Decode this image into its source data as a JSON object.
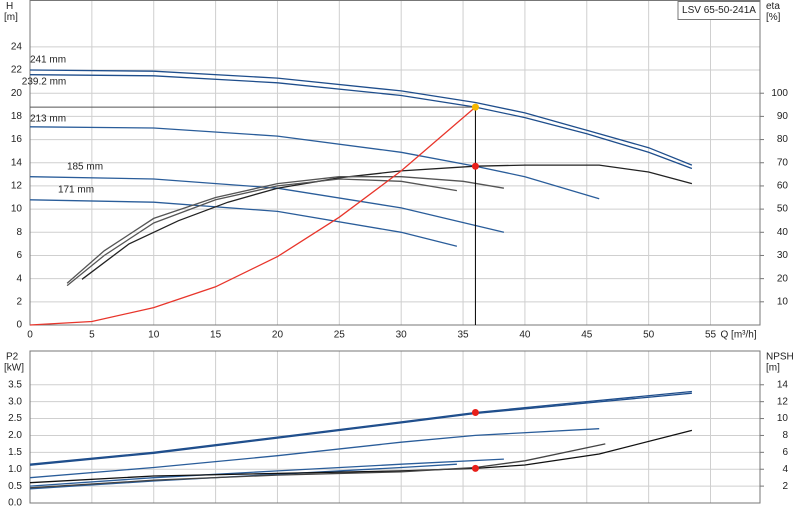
{
  "chart_data": [
    {
      "type": "line",
      "title": "LSV 65-50-241A",
      "x_label": "Q [m³/h]",
      "y_label": "H",
      "y_unit": "[m]",
      "y2_label": "eta",
      "y2_unit": "[%]",
      "xlim": [
        0,
        59
      ],
      "xticks": [
        0,
        5,
        10,
        15,
        20,
        25,
        30,
        35,
        40,
        45,
        50,
        55
      ],
      "ylim": [
        0,
        28
      ],
      "yticks": [
        0,
        2,
        4,
        6,
        8,
        10,
        12,
        14,
        16,
        18,
        20,
        22,
        24
      ],
      "y2lim": [
        0,
        140
      ],
      "y2ticks": [
        10,
        20,
        30,
        40,
        50,
        60,
        70,
        80,
        90,
        100
      ],
      "grid": true,
      "series": [
        {
          "name": "241 mm",
          "color": "#1f4e8c",
          "x": [
            0,
            10,
            20,
            30,
            36,
            40,
            45,
            50,
            53.5
          ],
          "values": [
            22.0,
            21.9,
            21.3,
            20.2,
            19.2,
            18.3,
            16.8,
            15.3,
            13.8
          ]
        },
        {
          "name": "239.2 mm",
          "color": "#1f4e8c",
          "x": [
            0,
            10,
            20,
            30,
            36,
            40,
            45,
            50,
            53.5
          ],
          "values": [
            21.6,
            21.5,
            20.9,
            19.8,
            18.8,
            17.9,
            16.5,
            14.9,
            13.5
          ]
        },
        {
          "name": "213 mm",
          "color": "#2a5d9a",
          "x": [
            0,
            10,
            20,
            30,
            36,
            40,
            46
          ],
          "values": [
            17.1,
            17.0,
            16.3,
            14.9,
            13.7,
            12.8,
            10.9
          ]
        },
        {
          "name": "185 mm",
          "color": "#2a5d9a",
          "x": [
            0,
            10,
            20,
            30,
            38.3
          ],
          "values": [
            12.8,
            12.6,
            11.8,
            10.1,
            8.0
          ]
        },
        {
          "name": "171 mm",
          "color": "#2a5d9a",
          "x": [
            0,
            10,
            20,
            30,
            34.5
          ],
          "values": [
            10.8,
            10.6,
            9.8,
            8.0,
            6.8
          ]
        },
        {
          "color": "#222222",
          "axis": "y2",
          "x": [
            4.2,
            8,
            12,
            16,
            20,
            25,
            30,
            36,
            40,
            46,
            50,
            53.5
          ],
          "values": [
            19.7,
            35,
            45,
            53,
            59,
            63.5,
            66.5,
            68.5,
            69,
            69,
            66,
            61
          ]
        },
        {
          "color": "#555555",
          "axis": "y2",
          "x": [
            3,
            6,
            10,
            15,
            20,
            25,
            30,
            35,
            38.3
          ],
          "values": [
            18,
            32,
            46,
            55,
            61,
            64,
            64,
            62,
            59
          ]
        },
        {
          "color": "#555555",
          "axis": "y2",
          "x": [
            3,
            6,
            10,
            15,
            20,
            25,
            30,
            34.5
          ],
          "values": [
            17,
            30,
            44,
            54,
            60,
            63,
            62,
            58
          ]
        },
        {
          "color": "#e8352b",
          "x": [
            0,
            5,
            10,
            15,
            20,
            25,
            30,
            36
          ],
          "values": [
            0,
            0.3,
            1.5,
            3.3,
            5.9,
            9.3,
            13.3,
            18.8
          ]
        }
      ],
      "markers": [
        {
          "color": "#f5b800",
          "x": 36,
          "value": 18.8
        },
        {
          "color": "#e8201b",
          "x": 36,
          "value": 13.7
        }
      ]
    },
    {
      "type": "line",
      "y_label": "P2",
      "y_unit": "[kW]",
      "y2_label": "NPSH",
      "y2_unit": "[m]",
      "xlim": [
        0,
        59
      ],
      "xticks": [
        0,
        5,
        10,
        15,
        20,
        25,
        30,
        35,
        40,
        45,
        50,
        55
      ],
      "ylim": [
        0,
        4.5
      ],
      "yticks": [
        {
          "value": 0,
          "label": "0.0"
        },
        0.5,
        {
          "value": 1,
          "label": "1.0"
        },
        1.5,
        {
          "value": 2,
          "label": "2.0"
        },
        2.5,
        {
          "value": 3,
          "label": "3.0"
        },
        3.5
      ],
      "y2lim": [
        0,
        18
      ],
      "y2ticks": [
        2,
        4,
        6,
        8,
        10,
        12,
        14
      ],
      "grid": true,
      "series": [
        {
          "color": "#1f4e8c",
          "x": [
            0,
            10,
            20,
            30,
            36,
            45,
            53.5
          ],
          "values": [
            1.15,
            1.5,
            1.95,
            2.4,
            2.68,
            3.0,
            3.3
          ]
        },
        {
          "color": "#1f4e8c",
          "x": [
            0,
            10,
            20,
            30,
            36,
            45,
            53.5
          ],
          "values": [
            1.12,
            1.47,
            1.92,
            2.37,
            2.65,
            2.96,
            3.25
          ]
        },
        {
          "color": "#2a5d9a",
          "x": [
            0,
            10,
            20,
            30,
            36,
            46
          ],
          "values": [
            0.75,
            1.05,
            1.4,
            1.8,
            2.0,
            2.2
          ]
        },
        {
          "color": "#2a5d9a",
          "x": [
            0,
            10,
            20,
            30,
            38.3
          ],
          "values": [
            0.5,
            0.75,
            0.95,
            1.15,
            1.3
          ]
        },
        {
          "color": "#2a5d9a",
          "x": [
            0,
            10,
            20,
            30,
            34.5
          ],
          "values": [
            0.42,
            0.65,
            0.85,
            1.05,
            1.15
          ]
        },
        {
          "color": "#111111",
          "axis": "y2",
          "x": [
            0,
            10,
            20,
            30,
            36,
            40,
            46,
            53.5
          ],
          "values": [
            2.4,
            3.2,
            3.5,
            3.8,
            4.1,
            4.5,
            5.8,
            8.6
          ]
        },
        {
          "color": "#444444",
          "axis": "y2",
          "x": [
            0,
            10,
            20,
            30,
            36,
            40,
            46.5
          ],
          "values": [
            1.8,
            2.7,
            3.3,
            3.7,
            4.2,
            5.0,
            7.0
          ]
        }
      ],
      "markers": [
        {
          "color": "#e8201b",
          "x": 36,
          "value": 2.68
        },
        {
          "color": "#e8201b",
          "axis": "y2",
          "x": 36,
          "value": 4.1
        }
      ]
    }
  ]
}
